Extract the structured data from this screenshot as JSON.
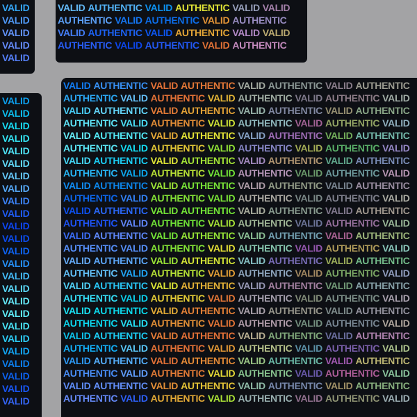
{
  "image": {
    "subject": "holographic security stickers",
    "words": [
      "VALID",
      "AUTHENTIC"
    ],
    "colors": {
      "background": "#a3a3a5",
      "sticker_base": "#0d0f14",
      "hologram_blue": "#3f7bff",
      "hologram_cyan": "#3fe0ff",
      "hologram_yellow": "#e8e040",
      "hologram_gray": "#8a8a90"
    }
  }
}
